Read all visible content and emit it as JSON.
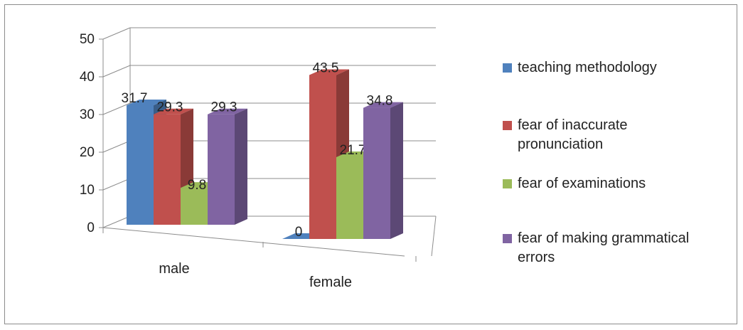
{
  "chart_data": {
    "type": "bar",
    "title": "",
    "xlabel": "",
    "ylabel": "",
    "categories": [
      "male",
      "female"
    ],
    "series": [
      {
        "name": "teaching methodology",
        "values": [
          31.7,
          0
        ],
        "labels": [
          "31.7",
          "0"
        ],
        "color": "#4f81bd"
      },
      {
        "name": "fear of inaccurate pronunciation",
        "values": [
          29.3,
          43.5
        ],
        "labels": [
          "29.3",
          "43.5"
        ],
        "color": "#c0504d"
      },
      {
        "name": "fear of examinations",
        "values": [
          9.8,
          21.7
        ],
        "labels": [
          "9.8",
          "21.7"
        ],
        "color": "#9bbb59"
      },
      {
        "name": "fear of making grammatical errors",
        "values": [
          29.3,
          34.8
        ],
        "labels": [
          "29.3",
          "34.8"
        ],
        "color": "#8064a2"
      }
    ],
    "yticks": [
      "0",
      "10",
      "20",
      "30",
      "40",
      "50"
    ],
    "ylim": [
      0,
      50
    ],
    "grid": true,
    "style": "3d-clustered-column",
    "legend_position": "right"
  }
}
